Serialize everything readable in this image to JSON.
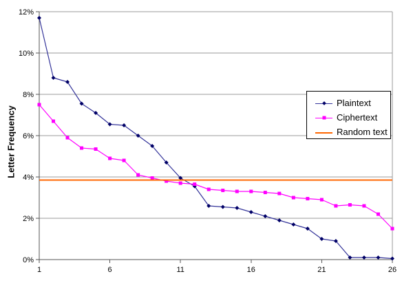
{
  "chart_data": {
    "type": "line",
    "title": "",
    "xlabel": "",
    "ylabel": "Letter Frequency",
    "x_range": [
      1,
      26
    ],
    "y_range": [
      0,
      12
    ],
    "y_unit": "%",
    "grid": "horizontal-major",
    "legend_position": "inside-right",
    "x": [
      1,
      2,
      3,
      4,
      5,
      6,
      7,
      8,
      9,
      10,
      11,
      12,
      13,
      14,
      15,
      16,
      17,
      18,
      19,
      20,
      21,
      22,
      23,
      24,
      25,
      26
    ],
    "xticks": [
      1,
      6,
      11,
      16,
      21,
      26
    ],
    "yticks": [
      {
        "value": 0,
        "label": "0%"
      },
      {
        "value": 2,
        "label": "2%"
      },
      {
        "value": 4,
        "label": "4%"
      },
      {
        "value": 6,
        "label": "6%"
      },
      {
        "value": 8,
        "label": "8%"
      },
      {
        "value": 10,
        "label": "10%"
      },
      {
        "value": 12,
        "label": "12%"
      }
    ],
    "series": [
      {
        "name": "Plaintext",
        "type": "line",
        "marker": "diamond",
        "line_color": "#333399",
        "marker_color": "#000066",
        "values": [
          11.7,
          8.8,
          8.6,
          7.55,
          7.1,
          6.55,
          6.5,
          6.0,
          5.5,
          4.7,
          3.95,
          3.55,
          2.6,
          2.55,
          2.5,
          2.3,
          2.1,
          1.9,
          1.7,
          1.5,
          1.0,
          0.9,
          0.1,
          0.1,
          0.1,
          0.05
        ]
      },
      {
        "name": "Ciphertext",
        "type": "line",
        "marker": "square",
        "line_color": "#ff00ff",
        "marker_color": "#ff00ff",
        "values": [
          7.5,
          6.7,
          5.9,
          5.4,
          5.35,
          4.9,
          4.8,
          4.1,
          3.95,
          3.8,
          3.7,
          3.65,
          3.4,
          3.35,
          3.3,
          3.3,
          3.25,
          3.2,
          3.0,
          2.95,
          2.9,
          2.6,
          2.65,
          2.6,
          2.2,
          1.5
        ]
      },
      {
        "name": "Random text",
        "type": "hline",
        "marker": "none",
        "line_color": "#ff6600",
        "value": 3.85
      }
    ]
  }
}
